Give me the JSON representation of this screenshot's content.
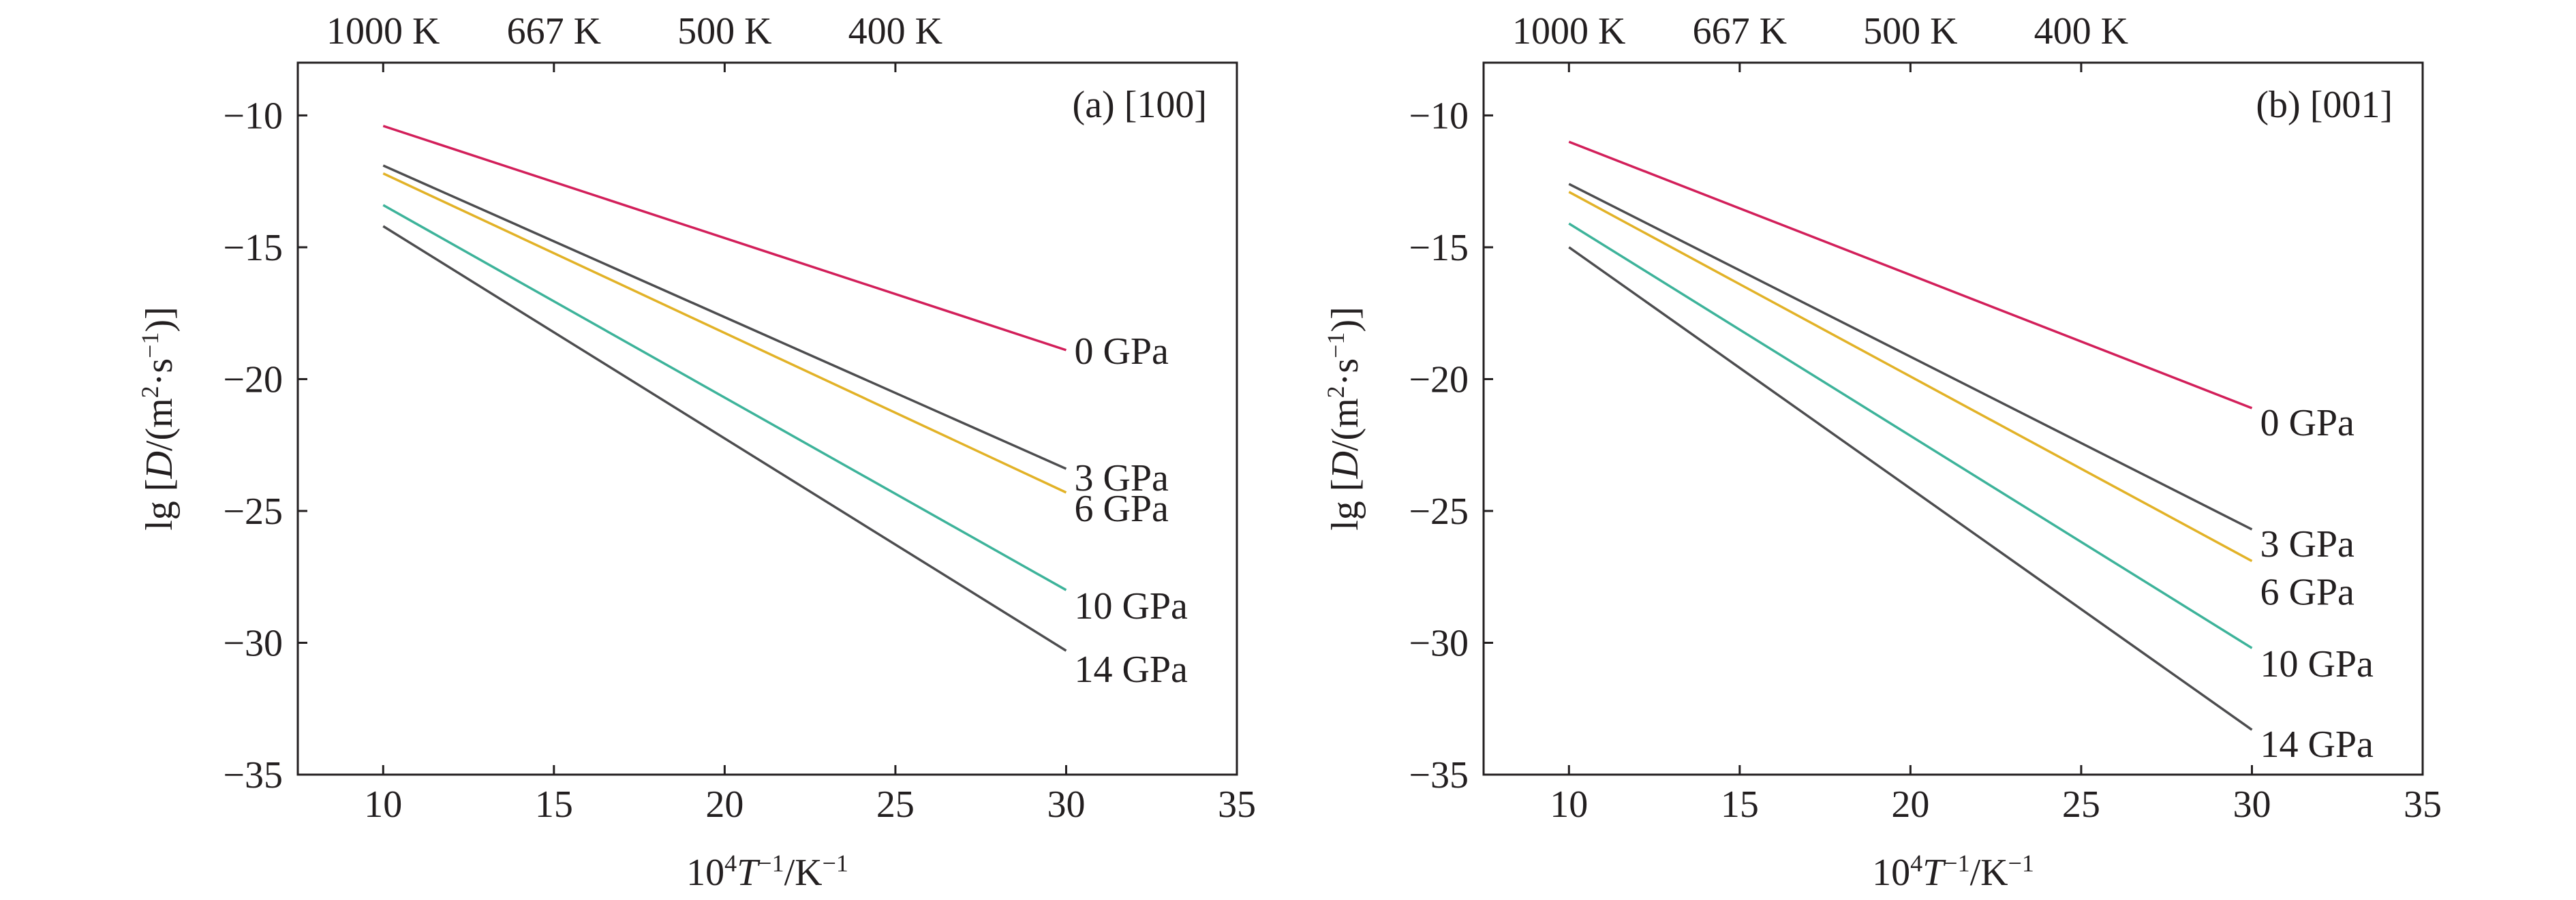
{
  "chart_data": [
    {
      "type": "line",
      "panel_label": "(a) [100]",
      "xlabel": "10⁴T⁻¹/K⁻¹",
      "ylabel": "lg [D/(m²·s⁻¹)]",
      "xlim": [
        7.5,
        35
      ],
      "ylim": [
        -35,
        -8
      ],
      "xticks": [
        10,
        15,
        20,
        25,
        30,
        35
      ],
      "yticks": [
        -10,
        -15,
        -20,
        -25,
        -30,
        -35
      ],
      "top_axis_labels": [
        {
          "x": 10,
          "label": "1000 K"
        },
        {
          "x": 15,
          "label": "667 K"
        },
        {
          "x": 20,
          "label": "500 K"
        },
        {
          "x": 25,
          "label": "400 K"
        }
      ],
      "series": [
        {
          "name": "0 GPa",
          "color": "#d21f5a",
          "x": [
            10,
            30
          ],
          "y": [
            -10.4,
            -18.9
          ]
        },
        {
          "name": "3 GPa",
          "color": "#4d4d4f",
          "x": [
            10,
            30
          ],
          "y": [
            -11.9,
            -23.4
          ]
        },
        {
          "name": "6 GPa",
          "color": "#e2b227",
          "x": [
            10,
            30
          ],
          "y": [
            -12.2,
            -24.3
          ]
        },
        {
          "name": "10 GPa",
          "color": "#3db39a",
          "x": [
            10,
            30
          ],
          "y": [
            -13.4,
            -28.0
          ]
        },
        {
          "name": "14 GPa",
          "color": "#4d4d4f",
          "x": [
            10,
            30
          ],
          "y": [
            -14.2,
            -30.3
          ]
        }
      ]
    },
    {
      "type": "line",
      "panel_label": "(b) [001]",
      "xlabel": "10⁴T⁻¹/K⁻¹",
      "ylabel": "lg [D/(m²·s⁻¹)]",
      "xlim": [
        7.5,
        35
      ],
      "ylim": [
        -35,
        -8
      ],
      "xticks": [
        10,
        15,
        20,
        25,
        30,
        35
      ],
      "yticks": [
        -10,
        -15,
        -20,
        -25,
        -30,
        -35
      ],
      "top_axis_labels": [
        {
          "x": 10,
          "label": "1000 K"
        },
        {
          "x": 15,
          "label": "667 K"
        },
        {
          "x": 20,
          "label": "500 K"
        },
        {
          "x": 25,
          "label": "400 K"
        }
      ],
      "series": [
        {
          "name": "0 GPa",
          "color": "#d21f5a",
          "x": [
            10,
            30
          ],
          "y": [
            -11.0,
            -21.1
          ]
        },
        {
          "name": "3 GPa",
          "color": "#4d4d4f",
          "x": [
            10,
            30
          ],
          "y": [
            -12.6,
            -25.7
          ]
        },
        {
          "name": "6 GPa",
          "color": "#e2b227",
          "x": [
            10,
            30
          ],
          "y": [
            -12.9,
            -26.9
          ]
        },
        {
          "name": "10 GPa",
          "color": "#3db39a",
          "x": [
            10,
            30
          ],
          "y": [
            -14.1,
            -30.2
          ]
        },
        {
          "name": "14 GPa",
          "color": "#4d4d4f",
          "x": [
            10,
            30
          ],
          "y": [
            -15.0,
            -33.3
          ]
        }
      ]
    }
  ]
}
